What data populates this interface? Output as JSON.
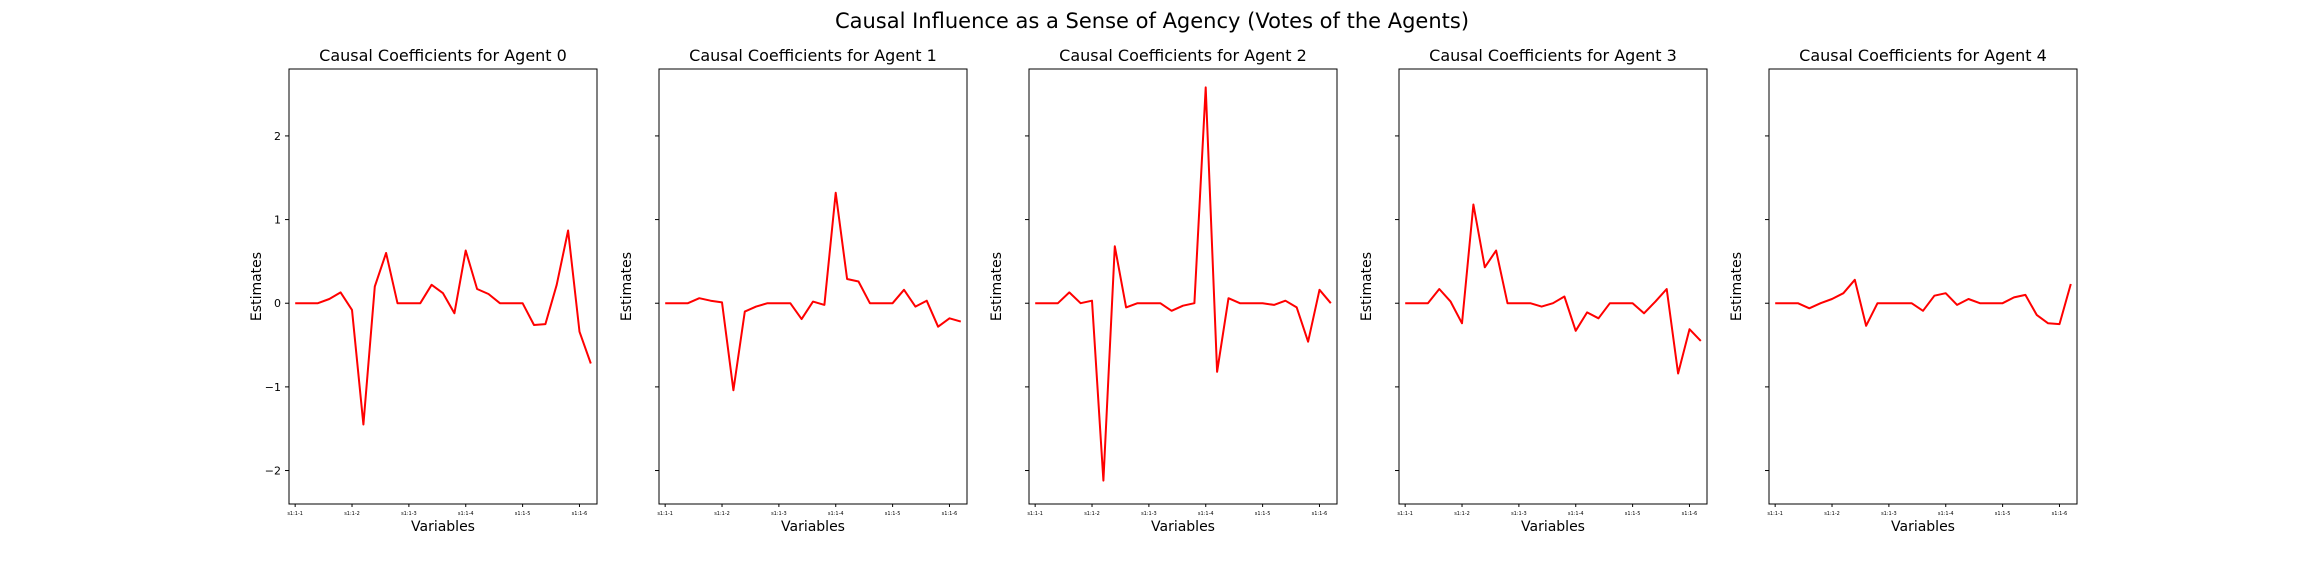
{
  "figure": {
    "title": "Causal Influence as a Sense of Agency (Votes of the Agents)"
  },
  "style": {
    "line_color": "#ff0000",
    "axis_color": "#000000",
    "background": "#ffffff"
  },
  "chart_data": [
    {
      "type": "line",
      "title": "Causal Coefficients for Agent 0",
      "xlabel": "Variables",
      "ylabel": "Estimates",
      "x_tick_labels": [
        "s1:1-1",
        "s1:1-2",
        "s1:1-3",
        "s1:1-4",
        "s1:1-5",
        "s1:1-6"
      ],
      "y_ticks": [
        -2,
        -1,
        0,
        1,
        2
      ],
      "ylim": [
        -2.4,
        2.8
      ],
      "grid": false,
      "series": [
        {
          "values": [
            0.0,
            0.0,
            0.0,
            0.05,
            0.13,
            -0.08,
            -1.45,
            0.2,
            0.6,
            0.0,
            0.0,
            0.0,
            0.22,
            0.12,
            -0.12,
            0.63,
            0.17,
            0.11,
            0.0,
            0.0,
            0.0,
            -0.26,
            -0.25,
            0.22,
            0.87,
            -0.34,
            -0.72
          ]
        }
      ]
    },
    {
      "type": "line",
      "title": "Causal Coefficients for Agent 1",
      "xlabel": "Variables",
      "ylabel": "Estimates",
      "x_tick_labels": [
        "s1:1-1",
        "s1:1-2",
        "s1:1-3",
        "s1:1-4",
        "s1:1-5",
        "s1:1-6"
      ],
      "y_ticks": [
        -2,
        -1,
        0,
        1,
        2
      ],
      "ylim": [
        -2.4,
        2.8
      ],
      "grid": false,
      "series": [
        {
          "values": [
            0.0,
            0.0,
            0.0,
            0.06,
            0.03,
            0.01,
            -1.04,
            -0.1,
            -0.04,
            0.0,
            0.0,
            0.0,
            -0.19,
            0.02,
            -0.02,
            1.32,
            0.29,
            0.26,
            0.0,
            0.0,
            0.0,
            0.16,
            -0.04,
            0.03,
            -0.28,
            -0.18,
            -0.22
          ]
        }
      ]
    },
    {
      "type": "line",
      "title": "Causal Coefficients for Agent 2",
      "xlabel": "Variables",
      "ylabel": "Estimates",
      "x_tick_labels": [
        "s1:1-1",
        "s1:1-2",
        "s1:1-3",
        "s1:1-4",
        "s1:1-5",
        "s1:1-6"
      ],
      "y_ticks": [
        -2,
        -1,
        0,
        1,
        2
      ],
      "ylim": [
        -2.4,
        2.8
      ],
      "grid": false,
      "series": [
        {
          "values": [
            0.0,
            0.0,
            0.0,
            0.13,
            0.0,
            0.03,
            -2.12,
            0.68,
            -0.05,
            0.0,
            0.0,
            0.0,
            -0.09,
            -0.03,
            0.0,
            2.58,
            -0.82,
            0.06,
            0.0,
            0.0,
            0.0,
            -0.02,
            0.03,
            -0.05,
            -0.46,
            0.16,
            0.0
          ]
        }
      ]
    },
    {
      "type": "line",
      "title": "Causal Coefficients for Agent 3",
      "xlabel": "Variables",
      "ylabel": "Estimates",
      "x_tick_labels": [
        "s1:1-1",
        "s1:1-2",
        "s1:1-3",
        "s1:1-4",
        "s1:1-5",
        "s1:1-6"
      ],
      "y_ticks": [
        -2,
        -1,
        0,
        1,
        2
      ],
      "ylim": [
        -2.4,
        2.8
      ],
      "grid": false,
      "series": [
        {
          "values": [
            0.0,
            0.0,
            0.0,
            0.17,
            0.02,
            -0.24,
            1.18,
            0.43,
            0.63,
            0.0,
            0.0,
            0.0,
            -0.04,
            0.0,
            0.08,
            -0.33,
            -0.11,
            -0.18,
            0.0,
            0.0,
            0.0,
            -0.12,
            0.02,
            0.17,
            -0.84,
            -0.31,
            -0.45
          ]
        }
      ]
    },
    {
      "type": "line",
      "title": "Causal Coefficients for Agent 4",
      "xlabel": "Variables",
      "ylabel": "Estimates",
      "x_tick_labels": [
        "s1:1-1",
        "s1:1-2",
        "s1:1-3",
        "s1:1-4",
        "s1:1-5",
        "s1:1-6"
      ],
      "y_ticks": [
        -2,
        -1,
        0,
        1,
        2
      ],
      "ylim": [
        -2.4,
        2.8
      ],
      "grid": false,
      "series": [
        {
          "values": [
            0.0,
            0.0,
            0.0,
            -0.06,
            0.0,
            0.05,
            0.12,
            0.28,
            -0.27,
            0.0,
            0.0,
            0.0,
            0.0,
            -0.09,
            0.09,
            0.12,
            -0.02,
            0.05,
            0.0,
            0.0,
            0.0,
            0.07,
            0.1,
            -0.14,
            -0.24,
            -0.25,
            0.23
          ]
        }
      ]
    }
  ]
}
